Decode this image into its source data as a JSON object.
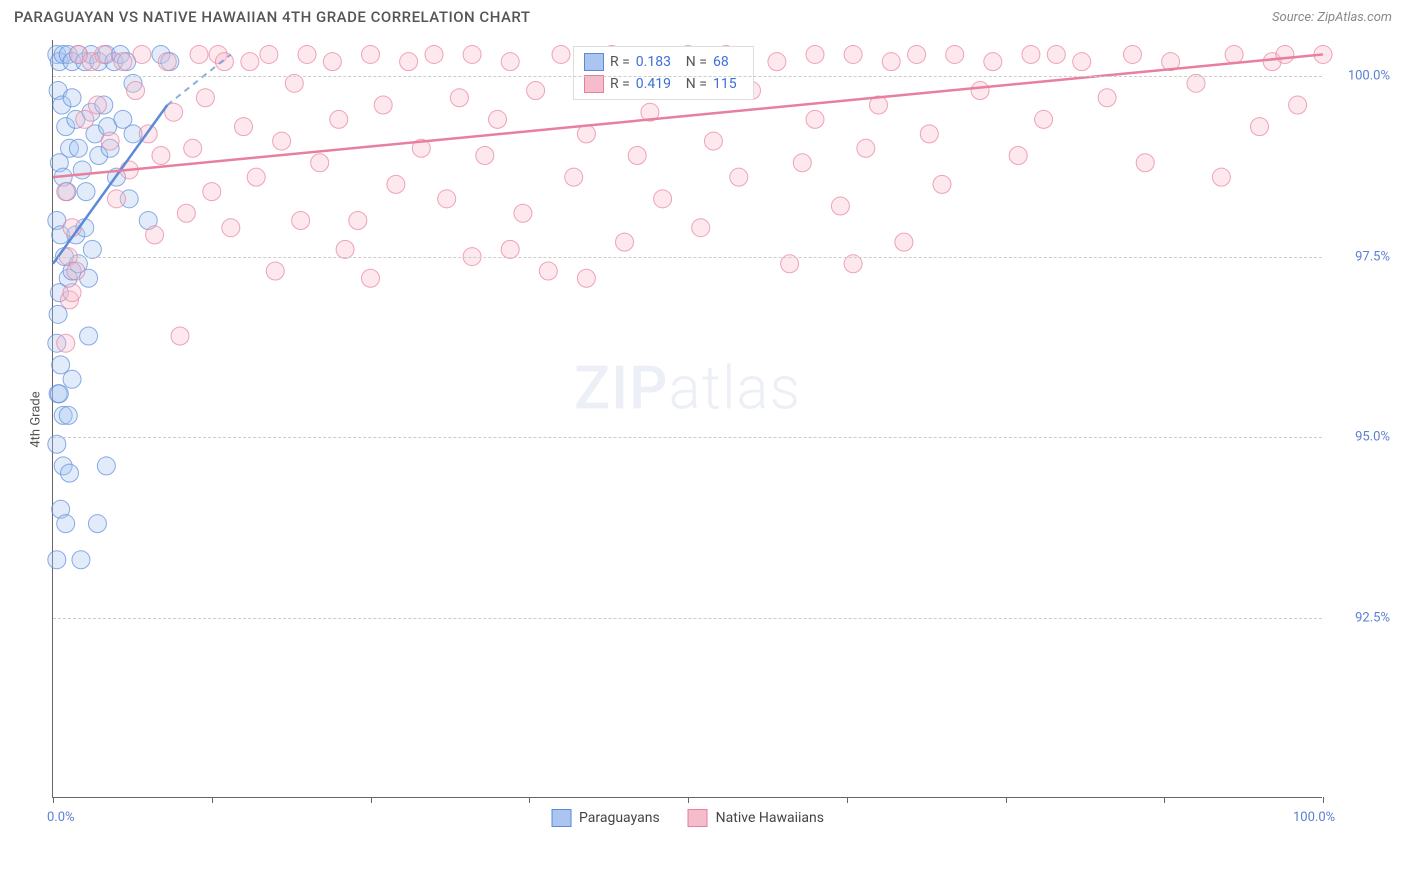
{
  "title": "PARAGUAYAN VS NATIVE HAWAIIAN 4TH GRADE CORRELATION CHART",
  "source": "Source: ZipAtlas.com",
  "watermark_bold": "ZIP",
  "watermark_light": "atlas",
  "chart": {
    "type": "scatter",
    "y_label": "4th Grade",
    "xlim": [
      0,
      100
    ],
    "ylim": [
      90,
      100.5
    ],
    "x_ticks_major": [
      0,
      12.5,
      25,
      37.5,
      50,
      62.5,
      75,
      87.5,
      100
    ],
    "x_tick_labels": {
      "0": "0.0%",
      "100": "100.0%"
    },
    "y_grid": [
      92.5,
      95.0,
      97.5,
      100.0
    ],
    "y_tick_labels": {
      "92.5": "92.5%",
      "95.0": "95.0%",
      "97.5": "97.5%",
      "100.0": "100.0%"
    },
    "background_color": "#ffffff",
    "grid_color": "#cccccc",
    "marker_radius": 9,
    "marker_opacity": 0.35,
    "series": [
      {
        "name": "Paraguayans",
        "color_fill": "#a9c5f0",
        "color_stroke": "#5b8ad8",
        "r": 0.183,
        "n": 68,
        "trend": {
          "x1": 0,
          "y1": 97.4,
          "x2": 9,
          "y2": 99.6,
          "x2_dash": 14,
          "y2_dash": 100.3
        },
        "points": [
          [
            0.3,
            100.3
          ],
          [
            0.5,
            100.2
          ],
          [
            0.8,
            100.3
          ],
          [
            1.2,
            100.3
          ],
          [
            1.5,
            100.2
          ],
          [
            2.0,
            100.3
          ],
          [
            2.5,
            100.2
          ],
          [
            3.0,
            100.3
          ],
          [
            3.6,
            100.2
          ],
          [
            4.2,
            100.3
          ],
          [
            4.8,
            100.2
          ],
          [
            5.3,
            100.3
          ],
          [
            5.8,
            100.2
          ],
          [
            6.3,
            99.9
          ],
          [
            8.5,
            100.3
          ],
          [
            9.2,
            100.2
          ],
          [
            0.4,
            99.8
          ],
          [
            0.7,
            99.6
          ],
          [
            1.0,
            99.3
          ],
          [
            1.3,
            99.0
          ],
          [
            0.5,
            98.8
          ],
          [
            0.8,
            98.6
          ],
          [
            1.1,
            98.4
          ],
          [
            1.5,
            99.7
          ],
          [
            1.8,
            99.4
          ],
          [
            2.0,
            99.0
          ],
          [
            2.3,
            98.7
          ],
          [
            2.6,
            98.4
          ],
          [
            3.0,
            99.5
          ],
          [
            3.3,
            99.2
          ],
          [
            3.6,
            98.9
          ],
          [
            4.0,
            99.6
          ],
          [
            4.3,
            99.3
          ],
          [
            4.5,
            99.0
          ],
          [
            5.0,
            98.6
          ],
          [
            5.5,
            99.4
          ],
          [
            6.0,
            98.3
          ],
          [
            6.3,
            99.2
          ],
          [
            0.3,
            98.0
          ],
          [
            0.6,
            97.8
          ],
          [
            0.9,
            97.5
          ],
          [
            1.2,
            97.2
          ],
          [
            0.5,
            97.0
          ],
          [
            0.4,
            96.7
          ],
          [
            1.5,
            97.3
          ],
          [
            1.8,
            97.8
          ],
          [
            2.0,
            97.4
          ],
          [
            2.5,
            97.9
          ],
          [
            2.8,
            97.2
          ],
          [
            3.1,
            97.6
          ],
          [
            0.3,
            96.3
          ],
          [
            0.6,
            96.0
          ],
          [
            0.4,
            95.6
          ],
          [
            0.8,
            95.3
          ],
          [
            0.5,
            95.6
          ],
          [
            1.2,
            95.3
          ],
          [
            0.3,
            94.9
          ],
          [
            0.8,
            94.6
          ],
          [
            1.3,
            94.5
          ],
          [
            4.2,
            94.6
          ],
          [
            0.6,
            94.0
          ],
          [
            1.0,
            93.8
          ],
          [
            3.5,
            93.8
          ],
          [
            0.3,
            93.3
          ],
          [
            2.2,
            93.3
          ],
          [
            1.5,
            95.8
          ],
          [
            2.8,
            96.4
          ],
          [
            7.5,
            98.0
          ]
        ]
      },
      {
        "name": "Native Hawaiians",
        "color_fill": "#f5bccc",
        "color_stroke": "#e87f9e",
        "r": 0.419,
        "n": 115,
        "trend": {
          "x1": 0,
          "y1": 98.6,
          "x2": 100,
          "y2": 100.3
        },
        "points": [
          [
            1,
            98.4
          ],
          [
            1.2,
            97.5
          ],
          [
            1.3,
            96.9
          ],
          [
            1,
            96.3
          ],
          [
            1.5,
            97.0
          ],
          [
            1.5,
            97.9
          ],
          [
            1.8,
            97.3
          ],
          [
            2,
            100.3
          ],
          [
            2.5,
            99.4
          ],
          [
            3,
            100.2
          ],
          [
            3.5,
            99.6
          ],
          [
            4,
            100.3
          ],
          [
            4.5,
            99.1
          ],
          [
            5,
            98.3
          ],
          [
            5.5,
            100.2
          ],
          [
            6,
            98.7
          ],
          [
            6.5,
            99.8
          ],
          [
            7,
            100.3
          ],
          [
            7.5,
            99.2
          ],
          [
            8,
            97.8
          ],
          [
            8.5,
            98.9
          ],
          [
            9,
            100.2
          ],
          [
            9.5,
            99.5
          ],
          [
            10,
            96.4
          ],
          [
            10.5,
            98.1
          ],
          [
            11,
            99.0
          ],
          [
            11.5,
            100.3
          ],
          [
            12,
            99.7
          ],
          [
            12.5,
            98.4
          ],
          [
            13,
            100.3
          ],
          [
            13.5,
            100.2
          ],
          [
            14,
            97.9
          ],
          [
            15,
            99.3
          ],
          [
            15.5,
            100.2
          ],
          [
            16,
            98.6
          ],
          [
            17,
            100.3
          ],
          [
            17.5,
            97.3
          ],
          [
            18,
            99.1
          ],
          [
            19,
            99.9
          ],
          [
            19.5,
            98.0
          ],
          [
            20,
            100.3
          ],
          [
            21,
            98.8
          ],
          [
            22,
            100.2
          ],
          [
            22.5,
            99.4
          ],
          [
            23,
            97.6
          ],
          [
            24,
            98.0
          ],
          [
            25,
            100.3
          ],
          [
            25,
            97.2
          ],
          [
            26,
            99.6
          ],
          [
            27,
            98.5
          ],
          [
            28,
            100.2
          ],
          [
            29,
            99.0
          ],
          [
            30,
            100.3
          ],
          [
            31,
            98.3
          ],
          [
            32,
            99.7
          ],
          [
            33,
            100.3
          ],
          [
            33,
            97.5
          ],
          [
            34,
            98.9
          ],
          [
            35,
            99.4
          ],
          [
            36,
            100.2
          ],
          [
            36,
            97.6
          ],
          [
            37,
            98.1
          ],
          [
            38,
            99.8
          ],
          [
            39,
            97.3
          ],
          [
            40,
            100.3
          ],
          [
            41,
            98.6
          ],
          [
            42,
            99.2
          ],
          [
            42,
            97.2
          ],
          [
            44,
            100.3
          ],
          [
            45,
            97.7
          ],
          [
            46,
            98.9
          ],
          [
            47,
            99.5
          ],
          [
            48,
            100.2
          ],
          [
            48,
            98.3
          ],
          [
            50,
            100.3
          ],
          [
            51,
            97.9
          ],
          [
            52,
            99.1
          ],
          [
            53,
            100.3
          ],
          [
            54,
            98.6
          ],
          [
            55,
            99.8
          ],
          [
            57,
            100.2
          ],
          [
            58,
            97.4
          ],
          [
            59,
            98.8
          ],
          [
            60,
            99.4
          ],
          [
            60,
            100.3
          ],
          [
            62,
            98.2
          ],
          [
            63,
            100.3
          ],
          [
            64,
            99.0
          ],
          [
            65,
            99.6
          ],
          [
            66,
            100.2
          ],
          [
            67,
            97.7
          ],
          [
            68,
            100.3
          ],
          [
            69,
            99.2
          ],
          [
            70,
            98.5
          ],
          [
            71,
            100.3
          ],
          [
            73,
            99.8
          ],
          [
            74,
            100.2
          ],
          [
            76,
            98.9
          ],
          [
            77,
            100.3
          ],
          [
            78,
            99.4
          ],
          [
            79,
            100.3
          ],
          [
            81,
            100.2
          ],
          [
            83,
            99.7
          ],
          [
            85,
            100.3
          ],
          [
            86,
            98.8
          ],
          [
            88,
            100.2
          ],
          [
            90,
            99.9
          ],
          [
            92,
            98.6
          ],
          [
            93,
            100.3
          ],
          [
            95,
            99.3
          ],
          [
            96,
            100.2
          ],
          [
            97,
            100.3
          ],
          [
            98,
            99.6
          ],
          [
            100,
            100.3
          ],
          [
            63,
            97.4
          ]
        ]
      }
    ]
  },
  "legend_stats": [
    {
      "swatch_fill": "#a9c5f0",
      "swatch_stroke": "#5b8ad8",
      "r_label": "R =",
      "r_val": "0.183",
      "n_label": "N =",
      "n_val": "68"
    },
    {
      "swatch_fill": "#f5bccc",
      "swatch_stroke": "#e87f9e",
      "r_label": "R =",
      "r_val": "0.419",
      "n_label": "N =",
      "n_val": "115"
    }
  ],
  "bottom_legend": [
    {
      "swatch_fill": "#a9c5f0",
      "swatch_stroke": "#5b8ad8",
      "label": "Paraguayans"
    },
    {
      "swatch_fill": "#f5bccc",
      "swatch_stroke": "#e87f9e",
      "label": "Native Hawaiians"
    }
  ]
}
